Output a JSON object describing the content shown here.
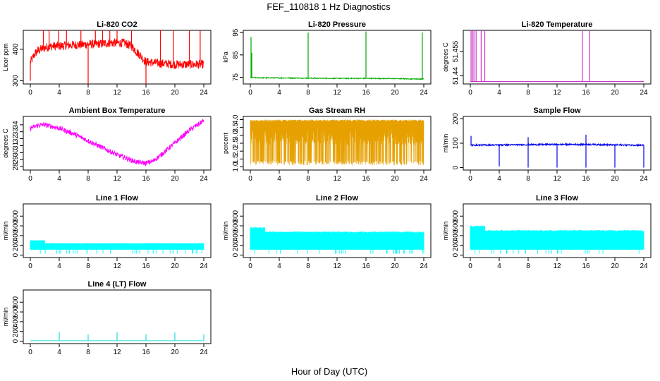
{
  "figure": {
    "title": "FEF_110818  1 Hz Diagnostics",
    "xlabel": "Hour of Day (UTC)"
  },
  "chart_data": [
    {
      "type": "line",
      "title": "Li-820 CO2",
      "ylabel": "Licor ppm",
      "xlim": [
        0,
        24
      ],
      "ylim": [
        290,
        460
      ],
      "xticks": [
        "0",
        "4",
        "8",
        "12",
        "16",
        "20",
        "24"
      ],
      "yticks": [
        300,
        400
      ],
      "color": "#ff0000",
      "series": [
        {
          "x": [
            0,
            0.3,
            0.6,
            1,
            1.5,
            2,
            3,
            4,
            5,
            6,
            7,
            8,
            9,
            10,
            11,
            12,
            13,
            14,
            15,
            15.5,
            16,
            17,
            18,
            19,
            20,
            21,
            22,
            23,
            24
          ],
          "y": [
            360,
            370,
            385,
            395,
            400,
            405,
            410,
            410,
            412,
            414,
            414,
            416,
            416,
            418,
            420,
            420,
            420,
            410,
            385,
            372,
            360,
            358,
            355,
            354,
            352,
            352,
            352,
            352,
            352
          ],
          "noise": 14,
          "spikes": [
            [
              0,
              300
            ],
            [
              1.8,
              460
            ],
            [
              2.6,
              460
            ],
            [
              3.9,
              460
            ],
            [
              5.0,
              460
            ],
            [
              7.0,
              460
            ],
            [
              8.0,
              290
            ],
            [
              9.0,
              460
            ],
            [
              10.0,
              460
            ],
            [
              11.0,
              460
            ],
            [
              12.0,
              460
            ],
            [
              14.0,
              460
            ],
            [
              16.0,
              290
            ],
            [
              18.0,
              460
            ],
            [
              19.8,
              460
            ],
            [
              22.0,
              460
            ],
            [
              23.5,
              460
            ]
          ]
        }
      ]
    },
    {
      "type": "line",
      "title": "Li-820 Pressure",
      "ylabel": "kPa",
      "xlim": [
        0,
        24
      ],
      "ylim": [
        72,
        96
      ],
      "xticks": [
        "0",
        "4",
        "8",
        "12",
        "16",
        "20",
        "24"
      ],
      "yticks": [
        75,
        85,
        95
      ],
      "color": "#00aa00",
      "series": [
        {
          "x": [
            0,
            4,
            8,
            12,
            16,
            20,
            23.6,
            24
          ],
          "y": [
            74.8,
            74.7,
            74.6,
            74.5,
            74.5,
            74.4,
            74.2,
            74.3
          ],
          "noise": 0.2,
          "spikes": [
            [
              0.1,
              93
            ],
            [
              0.2,
              86
            ],
            [
              8.0,
              95
            ],
            [
              16.0,
              95.5
            ],
            [
              23.8,
              95
            ]
          ]
        }
      ]
    },
    {
      "type": "line",
      "title": "Li-820 Temperature",
      "ylabel": "degrees C",
      "xlim": [
        0,
        24
      ],
      "ylim": [
        51.435,
        51.468
      ],
      "xticks": [
        "0",
        "4",
        "8",
        "12",
        "16",
        "20",
        "24"
      ],
      "yticks": [
        51.44,
        51.455
      ],
      "color": "#cc33cc",
      "series": [
        {
          "x": [
            0,
            24
          ],
          "y": [
            51.4365,
            51.4365
          ],
          "noise": 0,
          "spikes": [
            [
              0.1,
              51.468
            ],
            [
              0.3,
              51.468
            ],
            [
              0.5,
              51.468
            ],
            [
              0.8,
              51.468
            ],
            [
              1.5,
              51.468
            ],
            [
              2.0,
              51.468
            ],
            [
              15.5,
              51.468
            ],
            [
              16.5,
              51.468
            ]
          ]
        }
      ]
    },
    {
      "type": "line",
      "title": "Ambient Box Temperature",
      "ylabel": "degrees C",
      "xlim": [
        0,
        24
      ],
      "ylim": [
        27.5,
        35.2
      ],
      "xticks": [
        "0",
        "4",
        "8",
        "12",
        "16",
        "20",
        "24"
      ],
      "yticks": [
        28,
        29,
        30,
        31,
        32,
        33,
        34
      ],
      "color": "#ff00ff",
      "series": [
        {
          "x": [
            0,
            1,
            2,
            4,
            6,
            8,
            10,
            12,
            14,
            15,
            16,
            17,
            18,
            20,
            22,
            24
          ],
          "y": [
            33.5,
            33.9,
            34.0,
            33.5,
            32.7,
            31.7,
            30.7,
            29.7,
            28.9,
            28.6,
            28.5,
            28.8,
            29.6,
            31.4,
            33.2,
            34.6
          ],
          "noise": 0.35,
          "spikes": []
        }
      ]
    },
    {
      "type": "line",
      "title": "Gas Stream RH",
      "ylabel": "percent",
      "xlim": [
        0,
        24
      ],
      "ylim": [
        0.8,
        4.2
      ],
      "xticks": [
        "0",
        "4",
        "8",
        "12",
        "16",
        "20",
        "24"
      ],
      "yticks": [
        "1.0",
        "1.5",
        "2.0",
        "2.5",
        "3.0",
        "3.5",
        "4.0"
      ],
      "color": "#e6a000",
      "series": [
        {
          "x": [
            0,
            24
          ],
          "y": [
            1.1,
            4.0
          ],
          "noise": 0,
          "spikes": []
        }
      ]
    },
    {
      "type": "line",
      "title": "Sample Flow",
      "ylabel": "ml/min",
      "xlim": [
        0,
        24
      ],
      "ylim": [
        -10,
        210
      ],
      "xticks": [
        "0",
        "4",
        "8",
        "12",
        "16",
        "20",
        "24"
      ],
      "yticks": [
        0,
        100,
        200
      ],
      "color": "#0000ee",
      "series": [
        {
          "x": [
            0,
            4,
            8,
            12,
            16,
            20,
            24
          ],
          "y": [
            92,
            93,
            94,
            95,
            95,
            93,
            92
          ],
          "noise": 3,
          "spikes": [
            [
              0.1,
              130
            ],
            [
              4.0,
              5
            ],
            [
              8.0,
              0
            ],
            [
              8.0,
              125
            ],
            [
              12.0,
              0
            ],
            [
              16.0,
              135
            ],
            [
              16.0,
              0
            ],
            [
              20.0,
              0
            ],
            [
              24.0,
              0
            ]
          ]
        }
      ]
    },
    {
      "type": "line",
      "title": "Line 1 Flow",
      "ylabel": "ml/min",
      "xlim": [
        0,
        24
      ],
      "ylim": [
        -50,
        1050
      ],
      "xticks": [
        "0",
        "4",
        "8",
        "12",
        "16",
        "20",
        "24"
      ],
      "yticks": [
        0,
        200,
        400,
        600,
        800
      ],
      "color": "#00ffff",
      "series": [
        {
          "x": [
            0,
            2,
            2.01,
            24
          ],
          "y": [
            300,
            300,
            240,
            240
          ],
          "noise": 0,
          "spikes": []
        }
      ]
    },
    {
      "type": "line",
      "title": "Line 2 Flow",
      "ylabel": "ml/min",
      "xlim": [
        0,
        24
      ],
      "ylim": [
        -50,
        1050
      ],
      "xticks": [
        "0",
        "4",
        "8",
        "12",
        "16",
        "20",
        "24"
      ],
      "yticks": [
        0,
        200,
        400,
        600,
        800
      ],
      "color": "#00ffff",
      "series": [
        {
          "x": [
            0,
            2,
            2.01,
            24
          ],
          "y": [
            560,
            560,
            470,
            470
          ],
          "noise": 0,
          "spikes": []
        }
      ]
    },
    {
      "type": "line",
      "title": "Line 3 Flow",
      "ylabel": "ml/min",
      "xlim": [
        0,
        24
      ],
      "ylim": [
        -50,
        1050
      ],
      "xticks": [
        "0",
        "4",
        "8",
        "12",
        "16",
        "20",
        "24"
      ],
      "yticks": [
        0,
        200,
        400,
        600,
        800
      ],
      "color": "#00ffff",
      "series": [
        {
          "x": [
            0,
            2,
            2.01,
            24
          ],
          "y": [
            590,
            590,
            500,
            500
          ],
          "noise": 0,
          "spikes": []
        }
      ]
    },
    {
      "type": "line",
      "title": "Line 4 (LT) Flow",
      "ylabel": "ml/min",
      "xlim": [
        0,
        24
      ],
      "ylim": [
        -50,
        1050
      ],
      "xticks": [
        "0",
        "4",
        "8",
        "12",
        "16",
        "20",
        "24"
      ],
      "yticks": [
        0,
        200,
        400,
        600,
        800
      ],
      "color": "#22dddd",
      "series": [
        {
          "x": [
            0,
            24
          ],
          "y": [
            10,
            10
          ],
          "noise": 0,
          "spikes": [
            [
              4.0,
              190
            ],
            [
              8.0,
              140
            ],
            [
              12.0,
              180
            ],
            [
              16.0,
              140
            ],
            [
              20.0,
              180
            ],
            [
              24.0,
              140
            ]
          ]
        }
      ]
    }
  ]
}
